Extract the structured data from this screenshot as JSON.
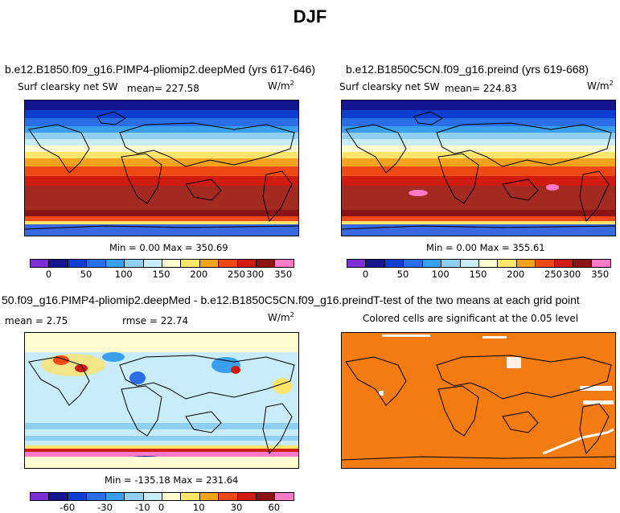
{
  "page": {
    "title": "DJF"
  },
  "panels": [
    {
      "title": "b.e12.B1850.f09_g16.PIMP4-pliomip2.deepMed (yrs 617-646)",
      "subtitle_left": "Surf clearsky net SW",
      "mean_text": "mean= 227.58",
      "units": "W/m",
      "units_exp": "2",
      "minmax": "Min =    0.00 Max = 350.69",
      "colorbar_labels": [
        "0",
        "50",
        "100",
        "150",
        "200",
        "250",
        "300",
        "350"
      ]
    },
    {
      "title": "b.e12.B1850C5CN.f09_g16.preind (yrs 619-668)",
      "subtitle_left": "Surf clearsky net SW",
      "mean_text": "mean= 224.83",
      "units": "W/m",
      "units_exp": "2",
      "minmax": "Min =    0.00 Max = 355.61",
      "colorbar_labels": [
        "0",
        "50",
        "100",
        "150",
        "200",
        "250",
        "300",
        "350"
      ]
    },
    {
      "title": "50.f09_g16.PIMP4-pliomip2.deepMed - b.e12.B1850C5CN.f09_g16.preind",
      "mean_text": "mean =    2.75",
      "rmse_text": "rmse =  22.74",
      "units": "W/m",
      "units_exp": "2",
      "minmax": "Min = -135.18 Max = 231.64",
      "colorbar_labels": [
        "-60",
        "-30",
        "-10",
        "0",
        "10",
        "30",
        "60"
      ]
    },
    {
      "title": "T-test of the two means at each grid point",
      "subtitle": "Colored cells are significant at the 0.05 level"
    }
  ],
  "colors": {
    "abs_scale": [
      "#7f2fd6",
      "#15158f",
      "#0a3fcf",
      "#2b6fe8",
      "#3aa0ee",
      "#8fd0f2",
      "#c8ecf8",
      "#fffdd0",
      "#fde46a",
      "#f7a21d",
      "#ef4a14",
      "#cf1b10",
      "#8a1313",
      "#ff7ac8"
    ],
    "diff_scale": [
      "#7f2fd6",
      "#15158f",
      "#0a3fcf",
      "#2b6fe8",
      "#3aa0ee",
      "#8fd0f2",
      "#c8ecf8",
      "#fffdd0",
      "#fde46a",
      "#f7a21d",
      "#ef4a14",
      "#cf1b10",
      "#8a1313",
      "#ff7ac8"
    ],
    "ttest": "#f47a12"
  },
  "chart_data": [
    {
      "type": "heatmap",
      "title": "b.e12.B1850.f09_g16.PIMP4-pliomip2.deepMed (yrs 617-646)",
      "variable": "Surf clearsky net SW",
      "units": "W/m2",
      "season": "DJF",
      "mean": 227.58,
      "min": 0.0,
      "max": 350.69,
      "colorbar_ticks": [
        0,
        50,
        100,
        150,
        200,
        250,
        300,
        350
      ]
    },
    {
      "type": "heatmap",
      "title": "b.e12.B1850C5CN.f09_g16.preind (yrs 619-668)",
      "variable": "Surf clearsky net SW",
      "units": "W/m2",
      "season": "DJF",
      "mean": 224.83,
      "min": 0.0,
      "max": 355.61,
      "colorbar_ticks": [
        0,
        50,
        100,
        150,
        200,
        250,
        300,
        350
      ]
    },
    {
      "type": "heatmap",
      "title": "50.f09_g16.PIMP4-pliomip2.deepMed - b.e12.B1850C5CN.f09_g16.preind",
      "units": "W/m2",
      "mean": 2.75,
      "rmse": 22.74,
      "min": -135.18,
      "max": 231.64,
      "colorbar_ticks": [
        -60,
        -30,
        -10,
        0,
        10,
        30,
        60
      ]
    },
    {
      "type": "heatmap",
      "title": "T-test of the two means at each grid point",
      "subtitle": "Colored cells are significant at the 0.05 level"
    }
  ]
}
